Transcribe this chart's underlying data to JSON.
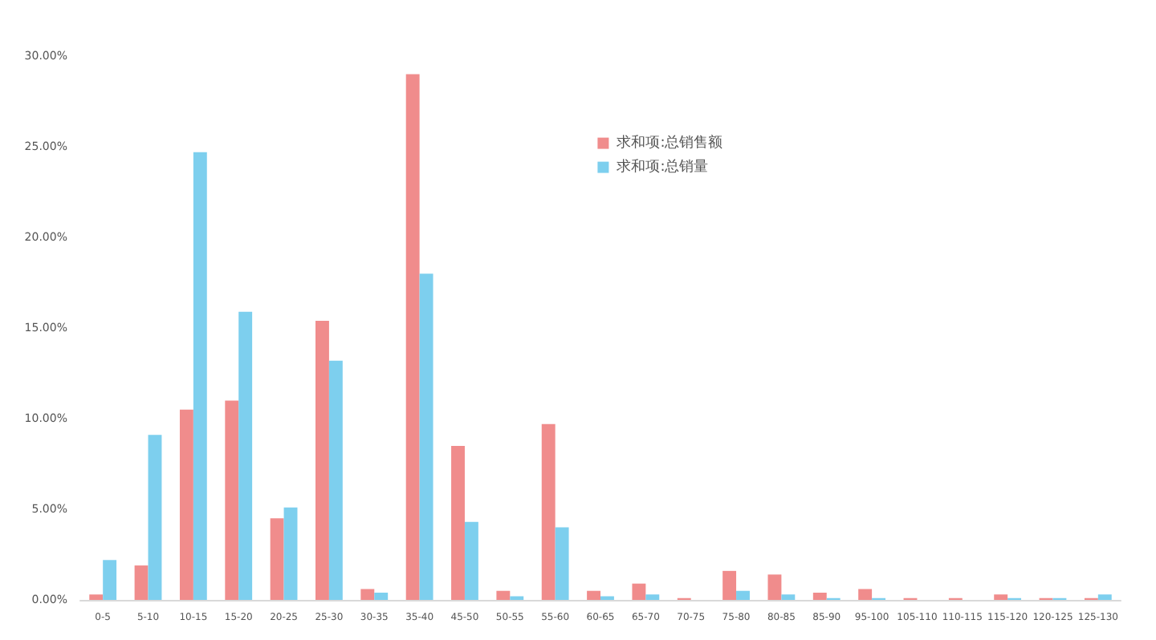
{
  "chart_data": {
    "type": "bar",
    "categories": [
      "0-5",
      "5-10",
      "10-15",
      "15-20",
      "20-25",
      "25-30",
      "30-35",
      "35-40",
      "45-50",
      "50-55",
      "55-60",
      "60-65",
      "65-70",
      "70-75",
      "75-80",
      "80-85",
      "85-90",
      "95-100",
      "105-110",
      "110-115",
      "115-120",
      "120-125",
      "125-130"
    ],
    "series": [
      {
        "name": "求和项:总销售额",
        "color": "#f08c8c",
        "values": [
          0.3,
          1.9,
          10.5,
          11.0,
          4.5,
          15.4,
          0.6,
          29.0,
          8.5,
          0.5,
          9.7,
          0.5,
          0.9,
          0.1,
          1.6,
          1.4,
          0.4,
          0.6,
          0.1,
          0.1,
          0.3,
          0.1,
          0.1
        ]
      },
      {
        "name": "求和项:总销量",
        "color": "#7dcfee",
        "values": [
          2.2,
          9.1,
          24.7,
          15.9,
          5.1,
          13.2,
          0.4,
          18.0,
          4.3,
          0.2,
          4.0,
          0.2,
          0.3,
          0.0,
          0.5,
          0.3,
          0.1,
          0.1,
          0.0,
          0.0,
          0.1,
          0.1,
          0.3
        ]
      }
    ],
    "ylim": [
      0,
      30
    ],
    "yticks": [
      {
        "value": 0,
        "label": "0.00%"
      },
      {
        "value": 5,
        "label": "5.00%"
      },
      {
        "value": 10,
        "label": "10.00%"
      },
      {
        "value": 15,
        "label": "15.00%"
      },
      {
        "value": 20,
        "label": "20.00%"
      },
      {
        "value": 25,
        "label": "25.00%"
      },
      {
        "value": 30,
        "label": "30.00%"
      }
    ],
    "grid": false,
    "legend": "top"
  }
}
